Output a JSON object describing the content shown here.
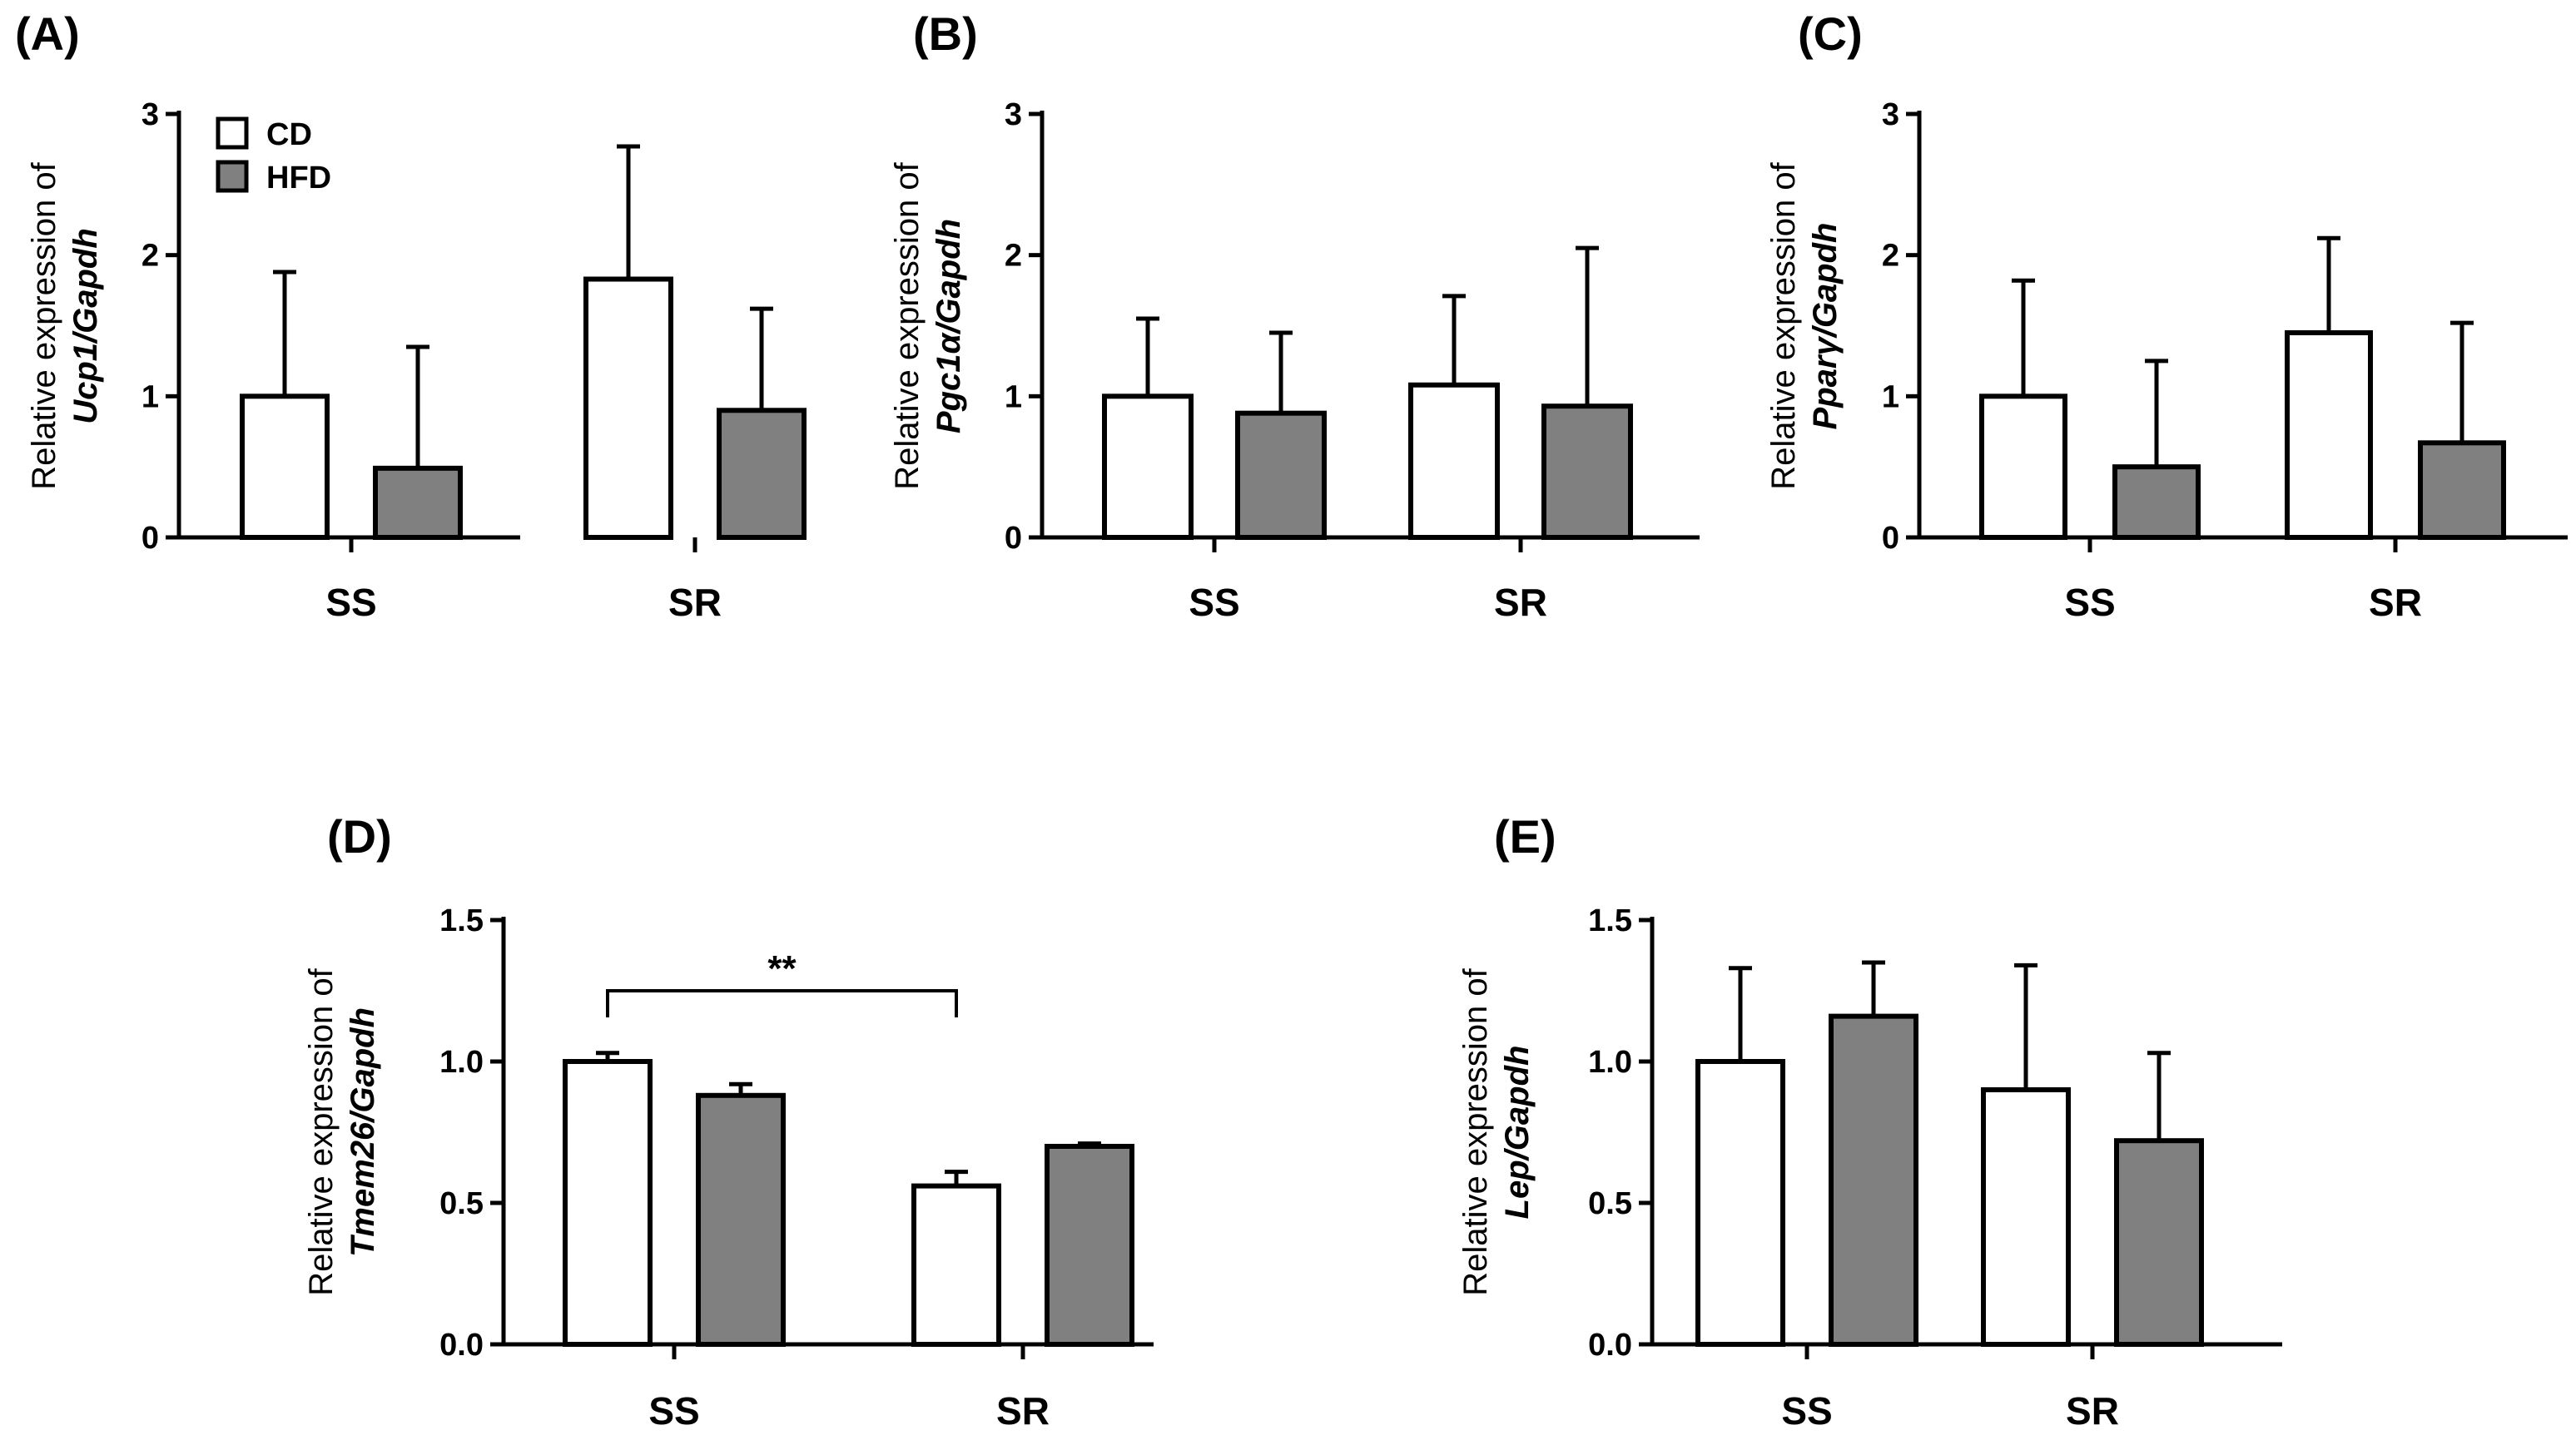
{
  "legend": {
    "items": [
      {
        "label": "CD",
        "color": "#ffffff"
      },
      {
        "label": "HFD",
        "color": "#808080"
      }
    ]
  },
  "chart_data": [
    {
      "type": "bar",
      "panel": "(A)",
      "ylabel_prefix": "Relative expression of",
      "ylabel_gene": "Ucp1/Gapdh",
      "categories": [
        "SS",
        "SR"
      ],
      "ylim": [
        0,
        3
      ],
      "yticks": [
        "0",
        "1",
        "2",
        "3"
      ],
      "series": [
        {
          "name": "CD",
          "values": [
            1.0,
            1.83
          ],
          "errors": [
            0.88,
            0.94
          ]
        },
        {
          "name": "HFD",
          "values": [
            0.49,
            0.9
          ],
          "errors": [
            0.86,
            0.72
          ]
        }
      ]
    },
    {
      "type": "bar",
      "panel": "(B)",
      "ylabel_prefix": "Relative expression of",
      "ylabel_gene": "Pgc1α/Gapdh",
      "categories": [
        "SS",
        "SR"
      ],
      "ylim": [
        0,
        3
      ],
      "yticks": [
        "0",
        "1",
        "2",
        "3"
      ],
      "series": [
        {
          "name": "CD",
          "values": [
            1.0,
            1.08
          ],
          "errors": [
            0.55,
            0.63
          ]
        },
        {
          "name": "HFD",
          "values": [
            0.88,
            0.93
          ],
          "errors": [
            0.57,
            1.12
          ]
        }
      ]
    },
    {
      "type": "bar",
      "panel": "(C)",
      "ylabel_prefix": "Relative expression of",
      "ylabel_gene": "Pparγ/Gapdh",
      "categories": [
        "SS",
        "SR"
      ],
      "ylim": [
        0,
        3
      ],
      "yticks": [
        "0",
        "1",
        "2",
        "3"
      ],
      "series": [
        {
          "name": "CD",
          "values": [
            1.0,
            1.45
          ],
          "errors": [
            0.82,
            0.67
          ]
        },
        {
          "name": "HFD",
          "values": [
            0.5,
            0.67
          ],
          "errors": [
            0.75,
            0.85
          ]
        }
      ]
    },
    {
      "type": "bar",
      "panel": "(D)",
      "ylabel_prefix": "Relative expression of",
      "ylabel_gene": "Tmem26/Gapdh",
      "categories": [
        "SS",
        "SR"
      ],
      "ylim": [
        0,
        1.5
      ],
      "yticks": [
        "0.0",
        "0.5",
        "1.0",
        "1.5"
      ],
      "series": [
        {
          "name": "CD",
          "values": [
            1.0,
            0.56
          ],
          "errors": [
            0.03,
            0.05
          ]
        },
        {
          "name": "HFD",
          "values": [
            0.88,
            0.7
          ],
          "errors": [
            0.04,
            0.01
          ]
        }
      ],
      "significance": {
        "label": "**",
        "from": "SS CD",
        "to": "SR CD"
      }
    },
    {
      "type": "bar",
      "panel": "(E)",
      "ylabel_prefix": "Relative expression of",
      "ylabel_gene": "Lep/Gapdh",
      "categories": [
        "SS",
        "SR"
      ],
      "ylim": [
        0,
        1.5
      ],
      "yticks": [
        "0.0",
        "0.5",
        "1.0",
        "1.5"
      ],
      "series": [
        {
          "name": "CD",
          "values": [
            1.0,
            0.9
          ],
          "errors": [
            0.33,
            0.44
          ]
        },
        {
          "name": "HFD",
          "values": [
            1.16,
            0.72
          ],
          "errors": [
            0.19,
            0.31
          ]
        }
      ]
    }
  ]
}
